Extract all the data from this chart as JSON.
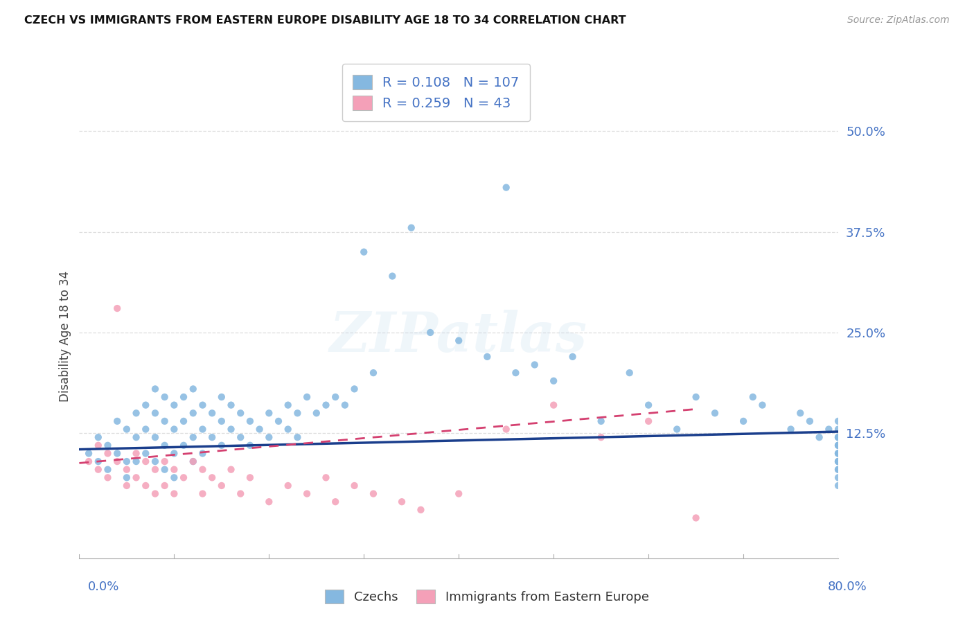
{
  "title": "CZECH VS IMMIGRANTS FROM EASTERN EUROPE DISABILITY AGE 18 TO 34 CORRELATION CHART",
  "source": "Source: ZipAtlas.com",
  "ylabel": "Disability Age 18 to 34",
  "x_min": 0.0,
  "x_max": 0.8,
  "y_min": -0.03,
  "y_max": 0.52,
  "yticks": [
    0.0,
    0.125,
    0.25,
    0.375,
    0.5
  ],
  "ytick_labels": [
    "",
    "12.5%",
    "25.0%",
    "37.5%",
    "50.0%"
  ],
  "series1_label": "Czechs",
  "series1_color": "#85b8e0",
  "series1_R": 0.108,
  "series1_N": 107,
  "series1_line_color": "#1a3e8c",
  "series2_label": "Immigrants from Eastern Europe",
  "series2_color": "#f4a0b8",
  "series2_R": 0.259,
  "series2_N": 43,
  "series2_line_color": "#d44070",
  "legend_R_color": "#4472c4",
  "watermark": "ZIPatlas",
  "bg_color": "#ffffff",
  "grid_color": "#dddddd",
  "czechs_x": [
    0.01,
    0.02,
    0.02,
    0.03,
    0.03,
    0.04,
    0.04,
    0.05,
    0.05,
    0.05,
    0.06,
    0.06,
    0.06,
    0.07,
    0.07,
    0.07,
    0.08,
    0.08,
    0.08,
    0.08,
    0.09,
    0.09,
    0.09,
    0.09,
    0.1,
    0.1,
    0.1,
    0.1,
    0.11,
    0.11,
    0.11,
    0.12,
    0.12,
    0.12,
    0.12,
    0.13,
    0.13,
    0.13,
    0.14,
    0.14,
    0.15,
    0.15,
    0.15,
    0.16,
    0.16,
    0.17,
    0.17,
    0.18,
    0.18,
    0.19,
    0.2,
    0.2,
    0.21,
    0.22,
    0.22,
    0.23,
    0.23,
    0.24,
    0.25,
    0.26,
    0.27,
    0.28,
    0.29,
    0.3,
    0.31,
    0.33,
    0.35,
    0.37,
    0.4,
    0.43,
    0.45,
    0.46,
    0.48,
    0.5,
    0.52,
    0.55,
    0.58,
    0.6,
    0.63,
    0.65,
    0.67,
    0.7,
    0.71,
    0.72,
    0.75,
    0.76,
    0.77,
    0.78,
    0.79,
    0.8,
    0.8,
    0.8,
    0.8,
    0.8,
    0.8,
    0.8,
    0.8,
    0.8,
    0.8,
    0.8,
    0.8,
    0.8,
    0.8,
    0.8,
    0.8,
    0.8,
    0.8
  ],
  "czechs_y": [
    0.1,
    0.12,
    0.09,
    0.11,
    0.08,
    0.14,
    0.1,
    0.13,
    0.09,
    0.07,
    0.15,
    0.12,
    0.09,
    0.16,
    0.13,
    0.1,
    0.18,
    0.15,
    0.12,
    0.09,
    0.17,
    0.14,
    0.11,
    0.08,
    0.16,
    0.13,
    0.1,
    0.07,
    0.17,
    0.14,
    0.11,
    0.18,
    0.15,
    0.12,
    0.09,
    0.16,
    0.13,
    0.1,
    0.15,
    0.12,
    0.17,
    0.14,
    0.11,
    0.16,
    0.13,
    0.15,
    0.12,
    0.14,
    0.11,
    0.13,
    0.15,
    0.12,
    0.14,
    0.16,
    0.13,
    0.15,
    0.12,
    0.17,
    0.15,
    0.16,
    0.17,
    0.16,
    0.18,
    0.35,
    0.2,
    0.32,
    0.38,
    0.25,
    0.24,
    0.22,
    0.43,
    0.2,
    0.21,
    0.19,
    0.22,
    0.14,
    0.2,
    0.16,
    0.13,
    0.17,
    0.15,
    0.14,
    0.17,
    0.16,
    0.13,
    0.15,
    0.14,
    0.12,
    0.13,
    0.14,
    0.12,
    0.11,
    0.13,
    0.1,
    0.12,
    0.11,
    0.09,
    0.1,
    0.12,
    0.11,
    0.09,
    0.1,
    0.08,
    0.09,
    0.07,
    0.08,
    0.06
  ],
  "immigrants_x": [
    0.01,
    0.02,
    0.02,
    0.03,
    0.03,
    0.04,
    0.04,
    0.05,
    0.05,
    0.06,
    0.06,
    0.07,
    0.07,
    0.08,
    0.08,
    0.09,
    0.09,
    0.1,
    0.1,
    0.11,
    0.12,
    0.13,
    0.13,
    0.14,
    0.15,
    0.16,
    0.17,
    0.18,
    0.2,
    0.22,
    0.24,
    0.26,
    0.27,
    0.29,
    0.31,
    0.34,
    0.36,
    0.4,
    0.45,
    0.5,
    0.55,
    0.6,
    0.65
  ],
  "immigrants_y": [
    0.09,
    0.11,
    0.08,
    0.1,
    0.07,
    0.28,
    0.09,
    0.08,
    0.06,
    0.1,
    0.07,
    0.09,
    0.06,
    0.08,
    0.05,
    0.09,
    0.06,
    0.08,
    0.05,
    0.07,
    0.09,
    0.08,
    0.05,
    0.07,
    0.06,
    0.08,
    0.05,
    0.07,
    0.04,
    0.06,
    0.05,
    0.07,
    0.04,
    0.06,
    0.05,
    0.04,
    0.03,
    0.05,
    0.13,
    0.16,
    0.12,
    0.14,
    0.02
  ]
}
